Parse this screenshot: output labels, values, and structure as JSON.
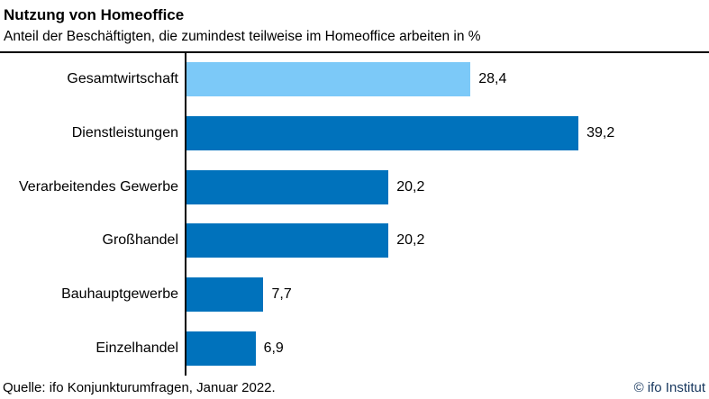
{
  "header": {
    "title": "Nutzung von Homeoffice",
    "subtitle": "Anteil der Beschäftigten, die zumindest teilweise im Homeoffice arbeiten in %"
  },
  "footer": {
    "source": "Quelle: ifo Konjunkturumfragen, Januar 2022.",
    "copyright": "© ifo Institut"
  },
  "colors": {
    "highlight_bar": "#7cc9f8",
    "default_bar": "#0072bc",
    "axis": "#000000",
    "copyright_text": "#17375e"
  },
  "chart_data": {
    "type": "bar",
    "orientation": "horizontal",
    "title": "Nutzung von Homeoffice",
    "subtitle": "Anteil der Beschäftigten, die zumindest teilweise im Homeoffice arbeiten in %",
    "categories": [
      "Gesamtwirtschaft",
      "Dienstleistungen",
      "Verarbeitendes Gewerbe",
      "Großhandel",
      "Bauhauptgewerbe",
      "Einzelhandel"
    ],
    "values": [
      28.4,
      39.2,
      20.2,
      20.2,
      7.7,
      6.9
    ],
    "value_labels": [
      "28,4",
      "39,2",
      "20,2",
      "20,2",
      "7,7",
      "6,9"
    ],
    "highlight_index": 0,
    "xlabel": "",
    "ylabel": "",
    "xlim": [
      0,
      50
    ],
    "grid": false,
    "legend": false,
    "value_labels_position": "outside-end"
  }
}
